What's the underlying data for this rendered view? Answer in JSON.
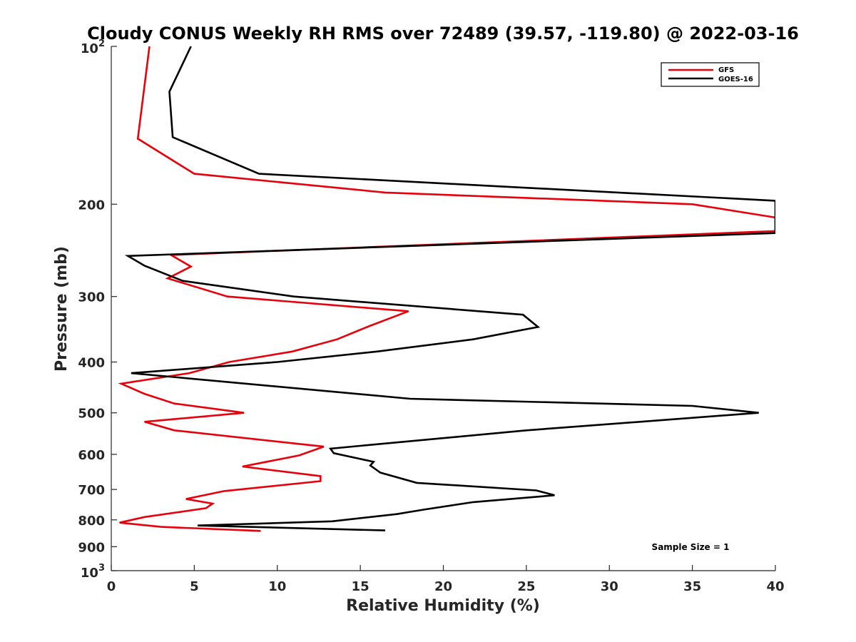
{
  "chart_data": {
    "type": "line",
    "title": "Cloudy CONUS Weekly RH RMS over 72489 (39.57, -119.80) @ 2022-03-16",
    "xlabel": "Relative Humidity (%)",
    "ylabel": "Pressure (mb)",
    "xlim": [
      0,
      40
    ],
    "ylim": [
      100,
      1000
    ],
    "y_scale": "log",
    "y_reversed": true,
    "grid": false,
    "legend_position": "top-right",
    "x_ticks": [
      "0",
      "5",
      "10",
      "15",
      "20",
      "25",
      "30",
      "35",
      "40"
    ],
    "y_ticks": [
      {
        "value": 100,
        "base": "10",
        "exp": "2"
      },
      {
        "value": 200,
        "label": "200"
      },
      {
        "value": 300,
        "label": "300"
      },
      {
        "value": 400,
        "label": "400"
      },
      {
        "value": 500,
        "label": "500"
      },
      {
        "value": 600,
        "label": "600"
      },
      {
        "value": 700,
        "label": "700"
      },
      {
        "value": 800,
        "label": "800"
      },
      {
        "value": 900,
        "label": "900"
      },
      {
        "value": 1000,
        "base": "10",
        "exp": "3"
      }
    ],
    "series": [
      {
        "name": "GFS",
        "color": "#e8000b",
        "points": [
          [
            2.3,
            100
          ],
          [
            1.6,
            150
          ],
          [
            5.0,
            175
          ],
          [
            16.5,
            190
          ],
          [
            35,
            200
          ],
          [
            40,
            212
          ],
          [
            40,
            225
          ],
          [
            3.6,
            250
          ],
          [
            4.8,
            263
          ],
          [
            3.4,
            277
          ],
          [
            7.0,
            300
          ],
          [
            17.9,
            320
          ],
          [
            15.5,
            342
          ],
          [
            13.6,
            362
          ],
          [
            10.9,
            382
          ],
          [
            7.1,
            400
          ],
          [
            4.7,
            420
          ],
          [
            0.6,
            440
          ],
          [
            2.0,
            460
          ],
          [
            3.8,
            480
          ],
          [
            8.0,
            500
          ],
          [
            2.0,
            520
          ],
          [
            3.8,
            540
          ],
          [
            12.8,
            580
          ],
          [
            11.3,
            603
          ],
          [
            7.9,
            633
          ],
          [
            12.6,
            660
          ],
          [
            12.6,
            675
          ],
          [
            6.8,
            705
          ],
          [
            4.5,
            730
          ],
          [
            6.1,
            745
          ],
          [
            5.7,
            760
          ],
          [
            2.0,
            790
          ],
          [
            0.5,
            810
          ],
          [
            3.0,
            825
          ],
          [
            9.0,
            840
          ]
        ]
      },
      {
        "name": "GOES-16",
        "color": "#000000",
        "points": [
          [
            4.8,
            100
          ],
          [
            3.5,
            122
          ],
          [
            3.7,
            149
          ],
          [
            8.9,
            175
          ],
          [
            23.5,
            185
          ],
          [
            40,
            197
          ],
          [
            40,
            227
          ],
          [
            1.0,
            251
          ],
          [
            2.0,
            262
          ],
          [
            4.3,
            280
          ],
          [
            11.0,
            300
          ],
          [
            24.8,
            325
          ],
          [
            25.7,
            343
          ],
          [
            21.8,
            362
          ],
          [
            16.0,
            382
          ],
          [
            10.0,
            400
          ],
          [
            1.2,
            420
          ],
          [
            18.0,
            470
          ],
          [
            35.0,
            485
          ],
          [
            39.0,
            500
          ],
          [
            25.0,
            540
          ],
          [
            13.2,
            585
          ],
          [
            13.4,
            597
          ],
          [
            15.8,
            620
          ],
          [
            15.6,
            630
          ],
          [
            15.9,
            640
          ],
          [
            16.2,
            650
          ],
          [
            18.4,
            680
          ],
          [
            25.6,
            703
          ],
          [
            26.7,
            718
          ],
          [
            21.8,
            740
          ],
          [
            18.8,
            765
          ],
          [
            17.2,
            780
          ],
          [
            13.3,
            805
          ],
          [
            5.2,
            820
          ],
          [
            16.5,
            838
          ]
        ]
      }
    ],
    "annotation": "Sample Size = 1"
  }
}
